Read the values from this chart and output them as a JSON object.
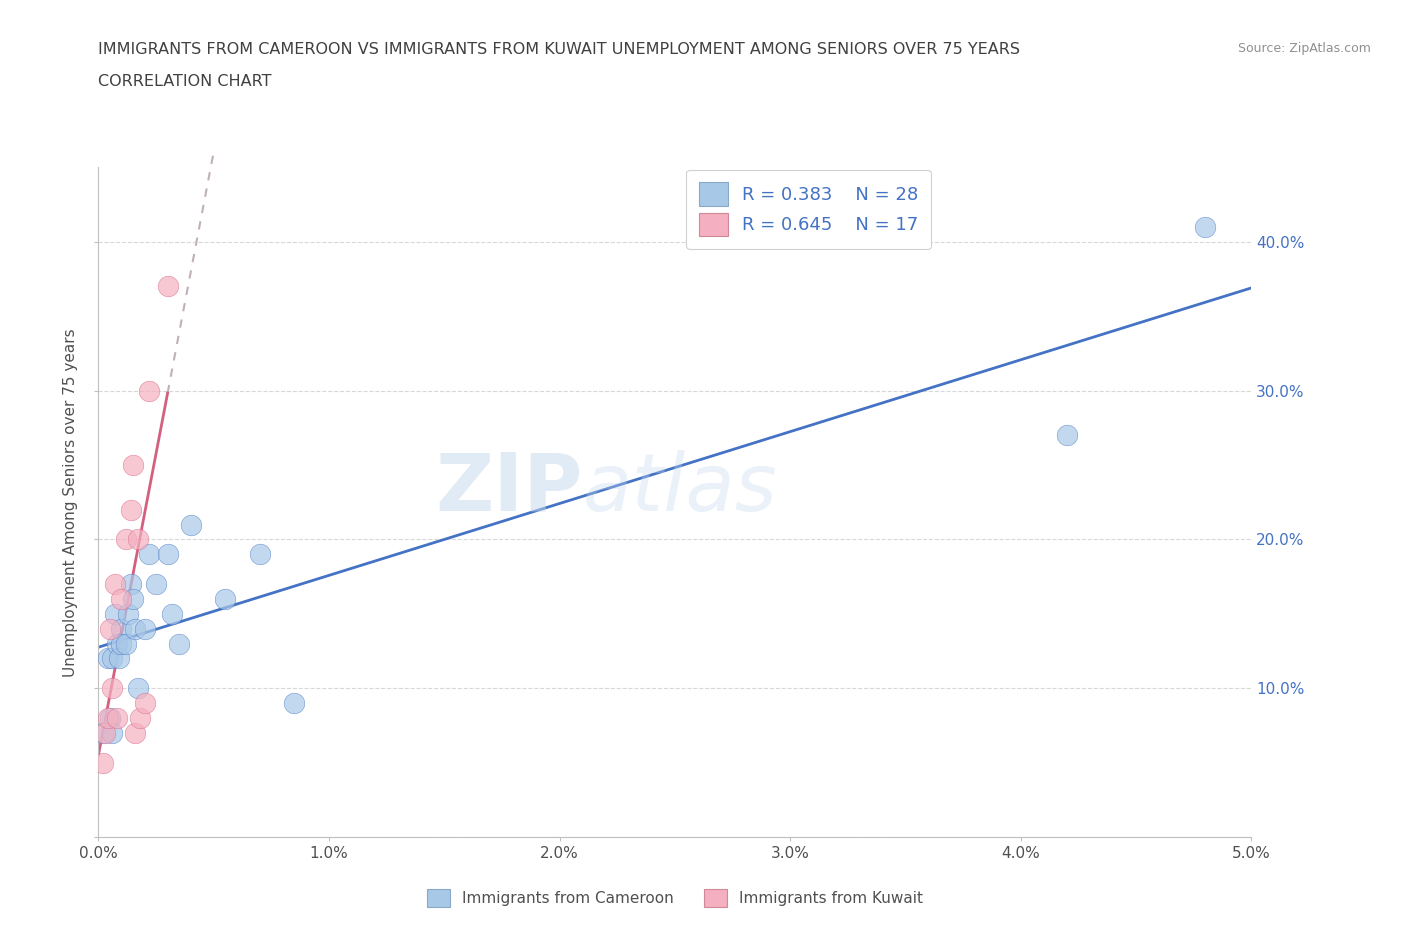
{
  "title_line1": "IMMIGRANTS FROM CAMEROON VS IMMIGRANTS FROM KUWAIT UNEMPLOYMENT AMONG SENIORS OVER 75 YEARS",
  "title_line2": "CORRELATION CHART",
  "source_text": "Source: ZipAtlas.com",
  "ylabel": "Unemployment Among Seniors over 75 years",
  "legend_label1": "Immigrants from Cameroon",
  "legend_label2": "Immigrants from Kuwait",
  "R1": 0.383,
  "N1": 28,
  "R2": 0.645,
  "N2": 17,
  "color1": "#a8c8e8",
  "color2": "#f4b0c0",
  "line1_color": "#4472c4",
  "line2_color": "#d46080",
  "title_color": "#404040",
  "xlim": [
    0.0,
    0.05
  ],
  "ylim": [
    -0.02,
    0.45
  ],
  "xticks": [
    0.0,
    0.01,
    0.02,
    0.03,
    0.04,
    0.05
  ],
  "yticks": [
    0.0,
    0.1,
    0.2,
    0.3,
    0.4
  ],
  "xtick_labels": [
    "0.0%",
    "1.0%",
    "2.0%",
    "3.0%",
    "4.0%",
    "5.0%"
  ],
  "ytick_labels": [
    "",
    "10.0%",
    "20.0%",
    "30.0%",
    "40.0%"
  ],
  "cameroon_x": [
    0.0002,
    0.0004,
    0.0005,
    0.0006,
    0.0006,
    0.0007,
    0.0008,
    0.0009,
    0.001,
    0.001,
    0.0012,
    0.0013,
    0.0014,
    0.0015,
    0.0016,
    0.0017,
    0.002,
    0.0022,
    0.0025,
    0.003,
    0.0032,
    0.0035,
    0.004,
    0.0055,
    0.007,
    0.0085,
    0.042,
    0.048
  ],
  "cameroon_y": [
    0.07,
    0.12,
    0.08,
    0.07,
    0.12,
    0.15,
    0.13,
    0.12,
    0.14,
    0.13,
    0.13,
    0.15,
    0.17,
    0.16,
    0.14,
    0.1,
    0.14,
    0.19,
    0.17,
    0.19,
    0.15,
    0.13,
    0.21,
    0.16,
    0.19,
    0.09,
    0.27,
    0.41
  ],
  "kuwait_x": [
    0.0002,
    0.0003,
    0.0004,
    0.0005,
    0.0006,
    0.0007,
    0.0008,
    0.001,
    0.0012,
    0.0014,
    0.0015,
    0.0016,
    0.0017,
    0.0018,
    0.002,
    0.0022,
    0.003
  ],
  "kuwait_y": [
    0.05,
    0.07,
    0.08,
    0.14,
    0.1,
    0.17,
    0.08,
    0.16,
    0.2,
    0.22,
    0.25,
    0.07,
    0.2,
    0.08,
    0.09,
    0.3,
    0.37
  ],
  "watermark_part1": "ZIP",
  "watermark_part2": "atlas",
  "background_color": "#ffffff",
  "grid_color": "#d8d8d8"
}
